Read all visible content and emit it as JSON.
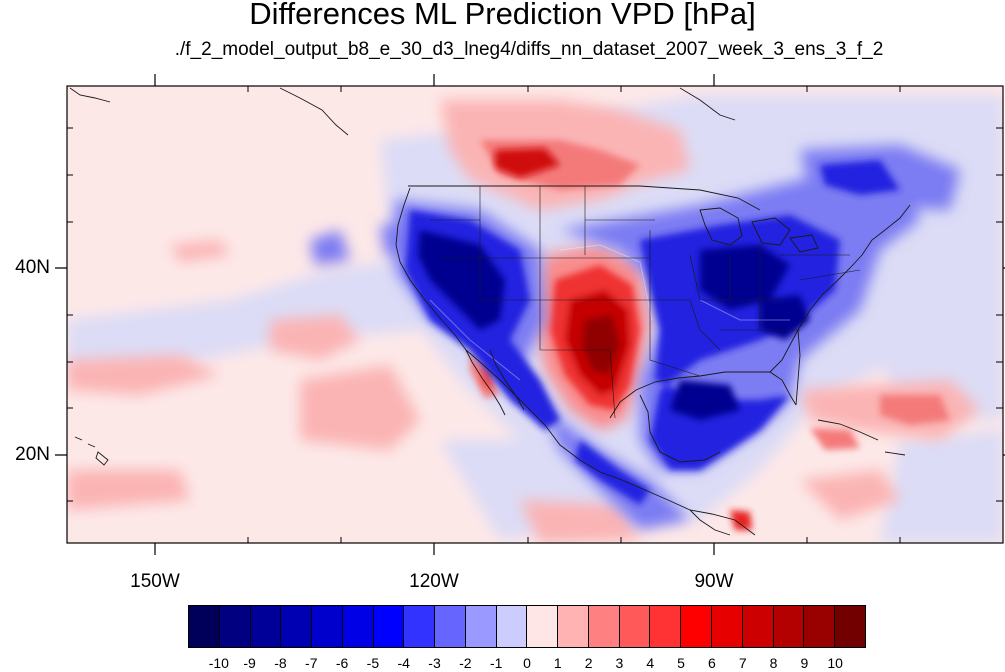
{
  "title": "Differences ML Prediction VPD [hPa]",
  "subtitle": "./f_2_model_output_b8_e_30_d3_lneg4/diffs_nn_dataset_2007_week_3_ens_3_f_2",
  "map": {
    "lat_labels": [
      "40N",
      "20N"
    ],
    "lon_labels": [
      "150W",
      "120W",
      "90W"
    ]
  },
  "colorbar": {
    "labels": [
      "-10",
      "-9",
      "-8",
      "-7",
      "-6",
      "-5",
      "-4",
      "-3",
      "-2",
      "-1",
      "0",
      "1",
      "2",
      "3",
      "4",
      "5",
      "6",
      "7",
      "8",
      "9",
      "10"
    ],
    "colors": [
      "#00005a",
      "#000080",
      "#000099",
      "#0000b3",
      "#0000cc",
      "#0000e6",
      "#0000ff",
      "#3333ff",
      "#6666ff",
      "#9999ff",
      "#ccccff",
      "#ffe6e6",
      "#ffb3b3",
      "#ff8080",
      "#ff5959",
      "#ff3333",
      "#ff0000",
      "#e60000",
      "#cc0000",
      "#b30000",
      "#990000",
      "#730000"
    ]
  }
}
